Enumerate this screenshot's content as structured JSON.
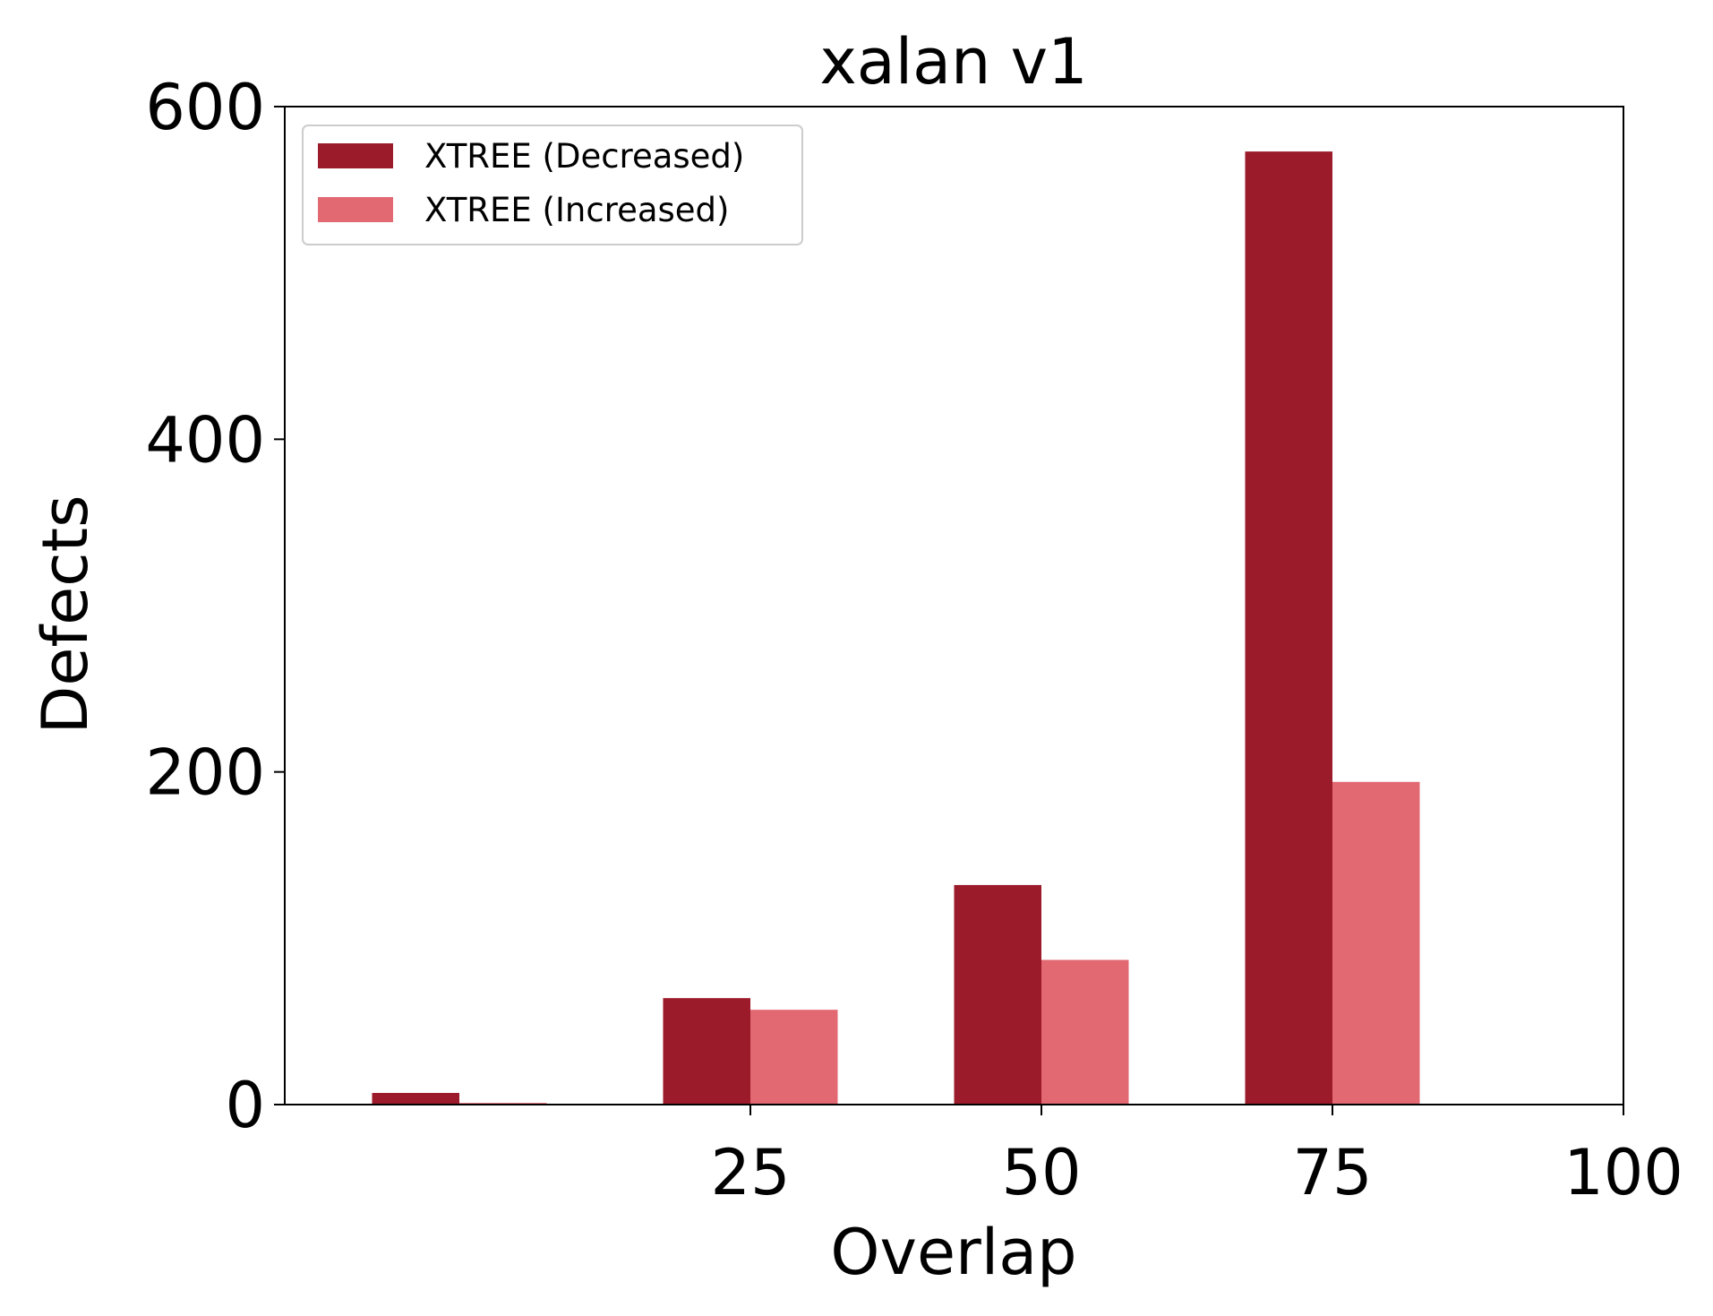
{
  "chart_data": {
    "type": "bar",
    "title": "xalan v1",
    "xlabel": "Overlap",
    "ylabel": "Defects",
    "xlim": [
      -15,
      100
    ],
    "ylim": [
      0,
      600
    ],
    "xticks": [
      25,
      50,
      75,
      100
    ],
    "yticks": [
      0,
      200,
      400,
      600
    ],
    "bar_width": 7.5,
    "categories": [
      0,
      25,
      50,
      75
    ],
    "series": [
      {
        "name": "XTREE (Decreased)",
        "color": "#9b1b2a",
        "offset": -7.5,
        "values": [
          7,
          64,
          132,
          573
        ]
      },
      {
        "name": "XTREE (Increased)",
        "color": "#e26872",
        "offset": 0,
        "values": [
          1,
          57,
          87,
          194
        ]
      }
    ],
    "legend_position": "upper-left",
    "grid": false
  }
}
